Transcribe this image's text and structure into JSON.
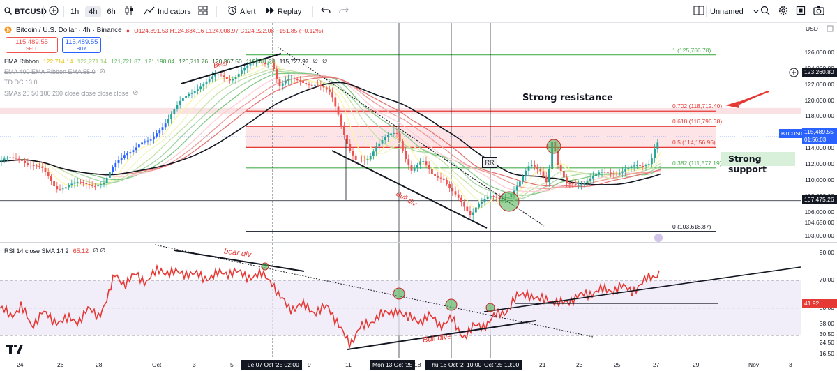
{
  "toolbar": {
    "symbol": "BTCUSD",
    "timeframes": [
      "1h",
      "4h",
      "6h"
    ],
    "active_timeframe": "4h",
    "indicators_label": "Indicators",
    "alert_label": "Alert",
    "replay_label": "Replay",
    "layout_name": "Unnamed"
  },
  "legend": {
    "title": "Bitcoin / U.S. Dollar · 4h · Binance",
    "ohlc": "O124,391.53 H124,834.16 L124,008.97 C124,222.08 −151.85 (−0.12%)",
    "sell_price": "115,489.55",
    "sell_label": "SELL",
    "buy_price": "115,489.55",
    "buy_label": "BUY",
    "ema_ribbon_label": "EMA Ribbon",
    "ema_ribbon_values": [
      "122,714.14",
      "122,271.14",
      "121,721.87",
      "121,198.04",
      "120,711.76",
      "120,267.50",
      "119,501.28",
      "115,727.97",
      "∅",
      "∅"
    ],
    "indicator_rows": [
      "EMA 400 EMA Ribbon EMA 55.0",
      "TD DC 13 0",
      "SMAs 20 50 100 200 close close close close"
    ]
  },
  "annotations": {
    "bear_div_top": "Bear",
    "strong_resistance": "Strong resistance",
    "strong_support": "Strong support",
    "bull_div_top": "Bull div",
    "rr_label": "RR",
    "bear_div_rsi": "bear div",
    "bull_div_rsi": "Bull dive"
  },
  "fib": [
    {
      "label": "1 (125,766.78)",
      "price": 125766.78,
      "color": "#4caf50"
    },
    {
      "label": "0.702 (118,712.40)",
      "price": 118712.4,
      "color": "#e53935"
    },
    {
      "label": "0.618 (116,796.38)",
      "price": 116796.38,
      "color": "#e53935"
    },
    {
      "label": "0.5 (114,156.96)",
      "price": 114156.96,
      "color": "#e53935"
    },
    {
      "label": "0.382 (111,577.19)",
      "price": 111577.19,
      "color": "#4caf50"
    },
    {
      "label": "0 (103,618.87)",
      "price": 103618.87,
      "color": "#131722"
    }
  ],
  "price_scale": {
    "currency": "USD",
    "ticks": [
      "126,000.00",
      "124,000.00",
      "122,000.00",
      "120,000.00",
      "118,000.00",
      "116,000.00",
      "114,000.00",
      "112,000.00",
      "110,000.00",
      "108,000.00",
      "106,000.00",
      "104,650.00",
      "103,000.00"
    ],
    "crosshair_tag": "123,260.80",
    "symbol_tag": "BTCUSD",
    "last_price_tag": "115,489.55",
    "countdown": "01:56:03",
    "hline_tag": "107,475.26"
  },
  "rsi": {
    "legend": "RSI 14 close SMA 14 2",
    "value": "65.12",
    "extra": "∅ ∅",
    "scale_ticks": [
      "90.00",
      "70.00",
      "50.00",
      "38.00",
      "30.50",
      "24.50",
      "16.50"
    ],
    "value_tag": "41.92"
  },
  "time_axis": {
    "labels": [
      "24",
      "26",
      "28",
      "Oct",
      "3",
      "5",
      "9",
      "11",
      "18",
      "21",
      "23",
      "25",
      "27",
      "29",
      "Nov",
      "3"
    ],
    "tags": [
      "Tue 07 Oct '25  02:00",
      "Mon 13 Oct '25",
      "Thu 16 Oct '25",
      "10:00",
      "Oct '25",
      "10:00"
    ]
  },
  "colors": {
    "bull": "#26a69a",
    "bear": "#ef5350",
    "blue_candle": "#2962ff",
    "rsi_line": "#e53935",
    "resistance_zone": "#f8d7da",
    "support_zone": "#d8f0d9"
  },
  "icons": [
    "search-icon",
    "plus-icon",
    "candles-icon",
    "indicators-icon",
    "templates-icon",
    "alert-icon",
    "replay-icon",
    "undo-icon",
    "redo-icon",
    "layout-icon",
    "search-icon",
    "settings-icon",
    "fullscreen-icon",
    "camera-icon",
    "tradingview-logo"
  ]
}
